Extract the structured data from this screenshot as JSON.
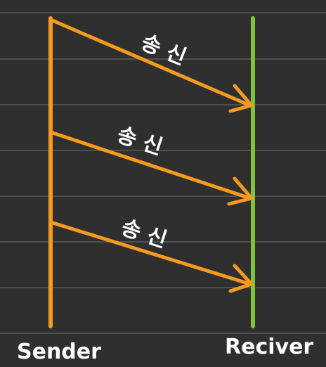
{
  "diagram": {
    "sender_label": "Sender",
    "receiver_label": "Reciver",
    "messages": [
      {
        "label": "송 신"
      },
      {
        "label": "송 신"
      },
      {
        "label": "송 신"
      }
    ],
    "colors": {
      "background": "#2f2f2f",
      "gridline": "#5a5a5a",
      "sender_line": "#f39a1f",
      "receiver_line": "#7cc43a",
      "arrow": "#f39a1f",
      "text": "#ffffff"
    }
  }
}
